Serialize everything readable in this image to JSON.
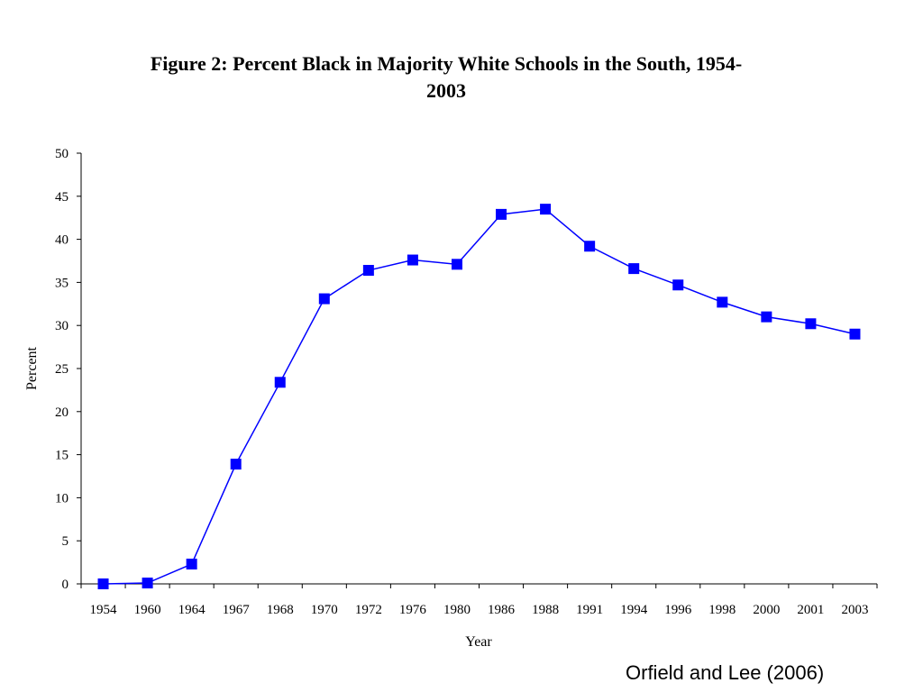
{
  "title_lines": [
    "Figure 2: Percent Black in Majority White Schools in the South, 1954-",
    "2003"
  ],
  "source": "Orfield and Lee (2006)",
  "colors": {
    "series": "#0000ff",
    "axis": "#000000"
  },
  "chart_data": {
    "type": "line",
    "title": "Figure 2: Percent Black in Majority White Schools in the South, 1954-2003",
    "xlabel": "Year",
    "ylabel": "Percent",
    "ylim": [
      0,
      50
    ],
    "yticks": [
      0,
      5,
      10,
      15,
      20,
      25,
      30,
      35,
      40,
      45,
      50
    ],
    "categories": [
      "1954",
      "1960",
      "1964",
      "1967",
      "1968",
      "1970",
      "1972",
      "1976",
      "1980",
      "1986",
      "1988",
      "1991",
      "1994",
      "1996",
      "1998",
      "2000",
      "2001",
      "2003"
    ],
    "series": [
      {
        "marker": "square",
        "values": [
          0,
          0.1,
          2.3,
          13.9,
          23.4,
          33.1,
          36.4,
          37.6,
          37.1,
          42.9,
          43.5,
          39.2,
          36.6,
          34.7,
          32.7,
          31.0,
          30.2,
          29.0
        ]
      }
    ],
    "grid": false,
    "legend": "none"
  }
}
